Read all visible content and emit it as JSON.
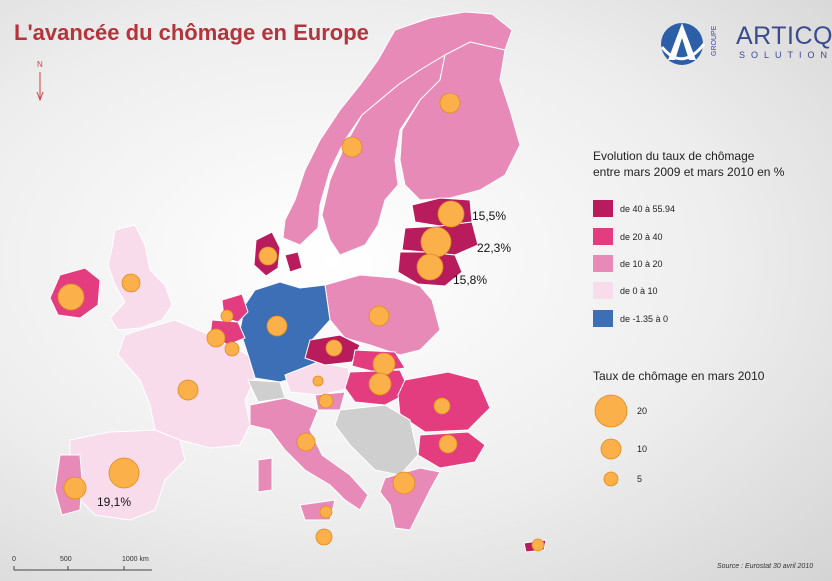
{
  "title": "L'avancée du chômage en Europe",
  "north_label": "N",
  "logo": {
    "groupe": "GROUPE",
    "name": "ARTICQUE",
    "sub": "SOLUTIONS"
  },
  "legend_evolution": {
    "title_line1": "Evolution du taux de chômage",
    "title_line2": "entre mars 2009 et mars 2010 en %",
    "classes": [
      {
        "label": "de 40 à 55.94",
        "color": "#b81c5c"
      },
      {
        "label": "de 20 à 40",
        "color": "#e33d80"
      },
      {
        "label": "de 10 à 20",
        "color": "#e88ab8"
      },
      {
        "label": "de 0 à 10",
        "color": "#f9dcec"
      },
      {
        "label": "de -1.35 à 0",
        "color": "#3d6fb6"
      }
    ]
  },
  "legend_rate": {
    "title": "Taux de chômage en mars 2010",
    "items": [
      {
        "label": "20",
        "value": 20
      },
      {
        "label": "10",
        "value": 10
      },
      {
        "label": "5",
        "value": 5
      }
    ]
  },
  "scale": {
    "labels": [
      "0",
      "500",
      "1000 km"
    ]
  },
  "source": "Source : Eurostat 30 avril 2010",
  "annotations": [
    {
      "text": "15,5%",
      "country": "Estonia"
    },
    {
      "text": "22,3%",
      "country": "Latvia"
    },
    {
      "text": "15,8%",
      "country": "Lithuania"
    },
    {
      "text": "19,1%",
      "country": "Spain"
    }
  ],
  "circle_color": "#fbb04a"
}
